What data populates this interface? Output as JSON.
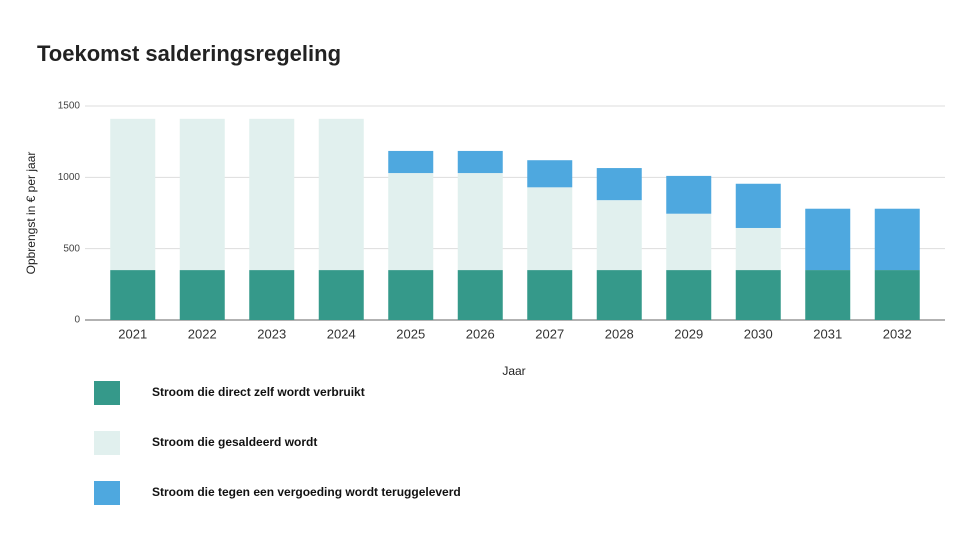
{
  "chart_data": {
    "type": "stacked_bar",
    "title": "Toekomst salderingsregeling",
    "xlabel": "Jaar",
    "ylabel": "Opbrengst in € per jaar",
    "categories": [
      "2021",
      "2022",
      "2023",
      "2024",
      "2025",
      "2026",
      "2027",
      "2028",
      "2029",
      "2030",
      "2031",
      "2032"
    ],
    "series": [
      {
        "name": "Stroom die direct zelf wordt verbruikt",
        "color": "#35998a",
        "values": [
          350,
          350,
          350,
          350,
          350,
          350,
          350,
          350,
          350,
          350,
          350,
          350
        ]
      },
      {
        "name": "Stroom die gesaldeerd wordt",
        "color": "#e1f0ee",
        "values": [
          1060,
          1060,
          1060,
          1060,
          680,
          680,
          580,
          490,
          395,
          295,
          0,
          0
        ]
      },
      {
        "name": "Stroom die tegen een vergoeding wordt teruggeleverd",
        "color": "#4ea8df",
        "values": [
          0,
          0,
          0,
          0,
          155,
          155,
          190,
          225,
          265,
          310,
          430,
          430
        ]
      }
    ],
    "ylim": [
      0,
      1500
    ],
    "yticks": [
      0,
      500,
      1000,
      1500
    ],
    "grid": true
  }
}
